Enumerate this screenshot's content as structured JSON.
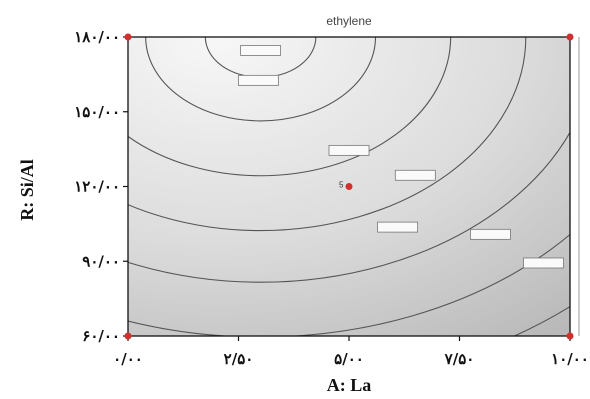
{
  "chart_data": {
    "type": "contour",
    "title": "ethylene",
    "xlabel": "A: La",
    "ylabel": "R: Si/Al",
    "xlim": [
      0,
      10
    ],
    "ylim": [
      60,
      180
    ],
    "x_ticks": [
      {
        "value": 0,
        "label": "۰/۰۰"
      },
      {
        "value": 2.5,
        "label": "۲/۵۰"
      },
      {
        "value": 5,
        "label": "۵/۰۰"
      },
      {
        "value": 7.5,
        "label": "۷/۵۰"
      },
      {
        "value": 10,
        "label": "۱۰/۰۰"
      }
    ],
    "y_ticks": [
      {
        "value": 60,
        "label": "۶۰/۰۰"
      },
      {
        "value": 90,
        "label": "۹۰/۰۰"
      },
      {
        "value": 120,
        "label": "۱۲۰/۰۰"
      },
      {
        "value": 150,
        "label": "۱۵۰/۰۰"
      },
      {
        "value": 180,
        "label": "۱۸۰/۰۰"
      }
    ],
    "center": {
      "x": 3,
      "y": 180
    },
    "contours": [
      {
        "r": 1.25,
        "label_x": 3.0,
        "label_y": 174.6
      },
      {
        "r": 2.6,
        "label_x": 2.95,
        "label_y": 162.6
      },
      {
        "r": 4.3,
        "label_x": 5.0,
        "label_y": 134.5
      },
      {
        "r": 6.0,
        "label_x": 6.5,
        "label_y": 124.5
      },
      {
        "r": 7.6,
        "label_x": 6.1,
        "label_y": 103.7
      },
      {
        "r": 9.3,
        "label_x": 8.2,
        "label_y": 100.8
      },
      {
        "r": 10.9,
        "label_x": 9.4,
        "label_y": 89.3
      }
    ],
    "corner_points": [
      {
        "x": 0,
        "y": 60
      },
      {
        "x": 0,
        "y": 180
      },
      {
        "x": 10,
        "y": 60
      },
      {
        "x": 10,
        "y": 180
      }
    ],
    "center_point": {
      "x": 5,
      "y": 120,
      "marker": "5"
    },
    "colors": {
      "plot_fill_light": "#f7f7f7",
      "plot_fill_dark": "#b9b9b9",
      "contour": "#555555",
      "design_point": "#d32f2f",
      "axis": "#111111"
    }
  }
}
